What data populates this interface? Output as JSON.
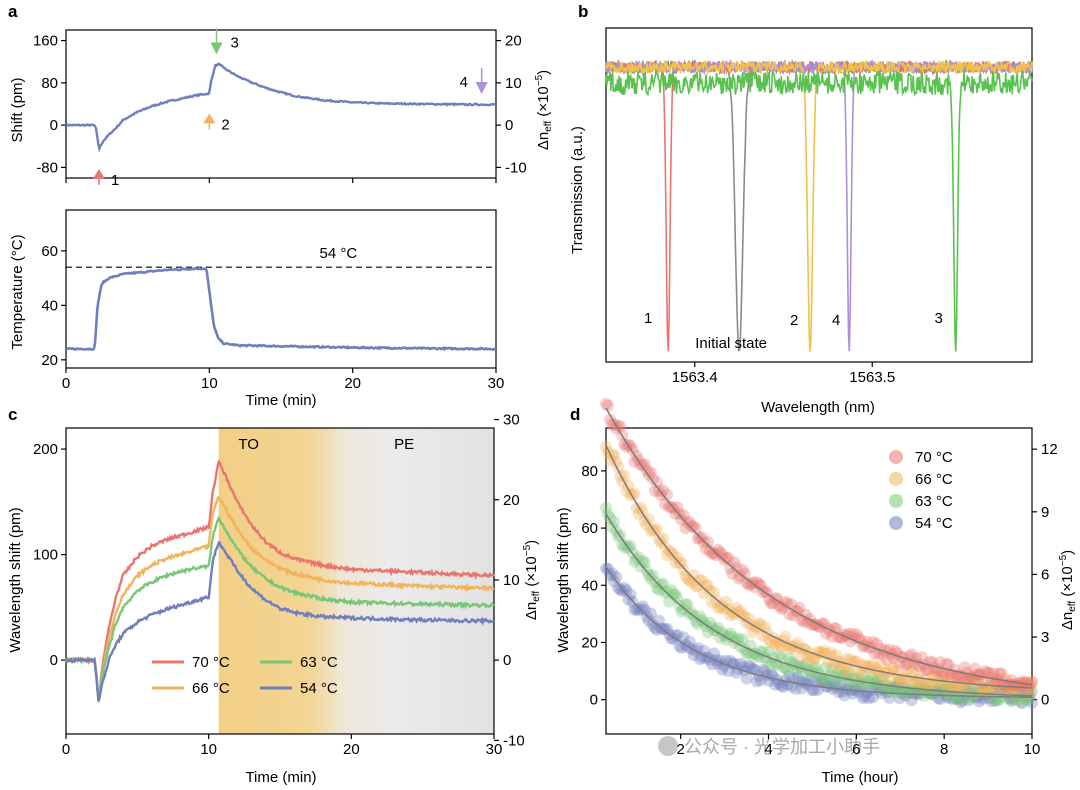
{
  "watermark": "公众号 · 光学加工小助手",
  "colors": {
    "blue": "#6f7fbd",
    "red": "#e8766f",
    "orange": "#f3b35b",
    "green": "#77c777",
    "gray": "#8a8a8a",
    "yellow": "#f0c24a",
    "purple": "#ad8fd8",
    "green2": "#59c24f"
  },
  "chart_data": [
    {
      "panel": "a-top",
      "type": "line",
      "panel_label": "a",
      "xlim": [
        0,
        30
      ],
      "ylim": [
        -100,
        180
      ],
      "yticks": [
        -80,
        0,
        80,
        160
      ],
      "ylabel": "Shift (pm)",
      "y2label": "Δn_eff (×10⁻⁵)",
      "y2ticks": [
        -10,
        0,
        10,
        20
      ],
      "series": [
        {
          "name": "Shift",
          "x": [
            0,
            2.0,
            2.1,
            2.3,
            2.6,
            3,
            3.5,
            4,
            5,
            6,
            7,
            8,
            9,
            10,
            10.1,
            10.4,
            10.7,
            11,
            12,
            13,
            14,
            15,
            16,
            18,
            20,
            22,
            25,
            28,
            30
          ],
          "y": [
            0,
            0,
            -8,
            -45,
            -30,
            -18,
            -5,
            10,
            25,
            36,
            44,
            50,
            56,
            60,
            80,
            112,
            116,
            108,
            92,
            80,
            70,
            62,
            55,
            47,
            43,
            41,
            40,
            39,
            39
          ]
        }
      ],
      "annotations": [
        {
          "label": "1",
          "x": 2.3,
          "y": -45,
          "dir": "up",
          "color": "red"
        },
        {
          "label": "2",
          "x": 10,
          "y": 60,
          "dir": "up",
          "color": "orange"
        },
        {
          "label": "3",
          "x": 10.5,
          "y": 115,
          "dir": "down",
          "color": "green"
        },
        {
          "label": "4",
          "x": 29,
          "y": 40,
          "dir": "down",
          "color": "purple"
        }
      ]
    },
    {
      "panel": "a-bottom",
      "type": "line",
      "xlim": [
        0,
        30
      ],
      "ylim": [
        17,
        75
      ],
      "yticks": [
        20,
        40,
        60
      ],
      "xticks": [
        0,
        10,
        20,
        30
      ],
      "xlabel": "Time (min)",
      "ylabel": "Temperature (°C)",
      "reference_line": {
        "y": 54,
        "label": "54 °C"
      },
      "series": [
        {
          "name": "Temperature",
          "x": [
            0,
            2.0,
            2.2,
            2.5,
            3,
            4,
            5,
            6,
            7,
            8,
            9,
            9.8,
            10,
            10.3,
            10.6,
            11,
            12,
            15,
            20,
            25,
            30
          ],
          "y": [
            24,
            24,
            40,
            48,
            50,
            51.5,
            52,
            52.5,
            53,
            53.2,
            53.5,
            53.5,
            45,
            33,
            28,
            26,
            25.3,
            25,
            24.5,
            24.2,
            24
          ]
        }
      ]
    },
    {
      "panel": "b",
      "type": "line",
      "panel_label": "b",
      "xlim": [
        1563.35,
        1563.59
      ],
      "xticks": [
        1563.4,
        1563.5
      ],
      "tick_labels": [
        "1563.4",
        "1563.5"
      ],
      "xlabel": "Wavelength (nm)",
      "ylabel": "Transmission (a.u.)",
      "series": [
        {
          "name": "1",
          "color": "red",
          "center": 1563.385,
          "width": 0.0015,
          "label": "1"
        },
        {
          "name": "Initial state",
          "color": "gray",
          "center": 1563.425,
          "width": 0.003,
          "label": "Initial state"
        },
        {
          "name": "2",
          "color": "yellow",
          "center": 1563.465,
          "width": 0.002,
          "label": "2"
        },
        {
          "name": "4",
          "color": "purple",
          "center": 1563.487,
          "width": 0.0015,
          "label": "4"
        },
        {
          "name": "3",
          "color": "green2",
          "center": 1563.547,
          "width": 0.0015,
          "label": "3"
        }
      ]
    },
    {
      "panel": "c",
      "type": "line",
      "panel_label": "c",
      "xlim": [
        0,
        30
      ],
      "xticks": [
        0,
        10,
        20,
        30
      ],
      "ylim": [
        -70,
        220
      ],
      "yticks": [
        0,
        100,
        200
      ],
      "xlabel": "Time (min)",
      "ylabel": "Wavelength shift (pm)",
      "y2label": "Δn_eff (×10⁻⁵)",
      "y2ticks": [
        -10,
        0,
        10,
        20,
        30
      ],
      "regions": [
        {
          "label": "TO",
          "x0": 10.7,
          "x1": 19
        },
        {
          "label": "PE",
          "x0": 19,
          "x1": 30
        }
      ],
      "series": [
        {
          "name": "70 °C",
          "color": "red",
          "x": [
            0,
            2,
            2.1,
            2.3,
            2.5,
            3,
            3.5,
            4,
            5,
            6,
            7,
            8,
            9,
            10,
            10.3,
            10.7,
            11,
            12,
            13,
            14,
            15,
            16,
            18,
            20,
            25,
            30
          ],
          "y": [
            0,
            0,
            -10,
            -40,
            -10,
            30,
            60,
            80,
            98,
            108,
            114,
            118,
            122,
            126,
            160,
            188,
            180,
            150,
            128,
            112,
            102,
            96,
            90,
            86,
            83,
            80
          ]
        },
        {
          "name": "66 °C",
          "color": "orange",
          "x": [
            0,
            2,
            2.1,
            2.3,
            2.5,
            3,
            3.5,
            4,
            5,
            6,
            7,
            8,
            9,
            10,
            10.3,
            10.7,
            11,
            12,
            13,
            14,
            15,
            16,
            18,
            20,
            25,
            30
          ],
          "y": [
            0,
            0,
            -10,
            -42,
            -15,
            20,
            45,
            62,
            80,
            90,
            96,
            100,
            104,
            108,
            140,
            155,
            148,
            124,
            106,
            95,
            87,
            82,
            76,
            73,
            70,
            68
          ]
        },
        {
          "name": "63 °C",
          "color": "green",
          "x": [
            0,
            2,
            2.1,
            2.3,
            2.5,
            3,
            3.5,
            4,
            5,
            6,
            7,
            8,
            9,
            10,
            10.3,
            10.7,
            11,
            12,
            13,
            14,
            15,
            16,
            18,
            20,
            25,
            30
          ],
          "y": [
            0,
            0,
            -10,
            -43,
            -18,
            12,
            35,
            50,
            66,
            74,
            80,
            84,
            87,
            89,
            118,
            135,
            128,
            105,
            88,
            77,
            69,
            64,
            58,
            55,
            53,
            52
          ]
        },
        {
          "name": "54 °C",
          "color": "blue",
          "x": [
            0,
            2,
            2.1,
            2.3,
            2.5,
            3,
            3.5,
            4,
            5,
            6,
            7,
            8,
            9,
            10,
            10.3,
            10.7,
            11,
            12,
            13,
            14,
            15,
            16,
            18,
            20,
            25,
            30
          ],
          "y": [
            0,
            0,
            -12,
            -40,
            -25,
            0,
            15,
            25,
            36,
            43,
            48,
            52,
            56,
            60,
            95,
            112,
            106,
            85,
            68,
            57,
            49,
            45,
            41,
            40,
            38,
            37
          ]
        }
      ]
    },
    {
      "panel": "d",
      "type": "scatter",
      "panel_label": "d",
      "xlim": [
        0.3,
        10
      ],
      "xticks": [
        2,
        4,
        6,
        8,
        10
      ],
      "ylim": [
        -12,
        95
      ],
      "yticks": [
        0,
        20,
        40,
        60,
        80
      ],
      "xlabel": "Time (hour)",
      "ylabel": "Wavelength shift (pm)",
      "y2label": "Δn_eff (×10⁻⁵)",
      "y2ticks": [
        0,
        3,
        6,
        9,
        12
      ],
      "series": [
        {
          "name": "70 °C",
          "color": "red",
          "A": 105,
          "tau": 3.8,
          "C": -3
        },
        {
          "name": "66 °C",
          "color": "orange",
          "A": 87,
          "tau": 2.6,
          "C": 2
        },
        {
          "name": "63 °C",
          "color": "green",
          "A": 65,
          "tau": 2.5,
          "C": 0
        },
        {
          "name": "54 °C",
          "color": "blue",
          "A": 46,
          "tau": 2.0,
          "C": 0.5
        }
      ]
    }
  ]
}
